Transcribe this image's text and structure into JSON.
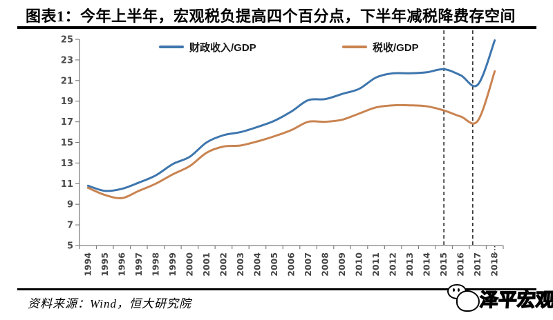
{
  "header": {
    "title": "图表1：今年上半年，宏观税负提高四个百分点，下半年减税降费存空间"
  },
  "footer": {
    "source": "资料来源：Wind，恒大研究院",
    "watermark": "泽平宏观"
  },
  "chart_data": {
    "type": "line",
    "title": "",
    "xlabel": "",
    "ylabel": "",
    "x": [
      1994,
      1995,
      1996,
      1997,
      1998,
      1999,
      2000,
      2001,
      2002,
      2003,
      2004,
      2005,
      2006,
      2007,
      2008,
      2009,
      2010,
      2011,
      2012,
      2013,
      2014,
      2015,
      2016,
      2017,
      2018
    ],
    "series": [
      {
        "name": "财政收入/GDP",
        "color": "#3E76AD",
        "values": [
          10.8,
          10.3,
          10.5,
          11.1,
          11.8,
          12.9,
          13.6,
          15.0,
          15.7,
          16.0,
          16.5,
          17.1,
          18.0,
          19.1,
          19.2,
          19.7,
          20.2,
          21.3,
          21.7,
          21.7,
          21.8,
          22.1,
          21.5,
          20.6,
          24.9
        ]
      },
      {
        "name": "税收/GDP",
        "color": "#C98350",
        "values": [
          10.6,
          9.9,
          9.6,
          10.3,
          11.0,
          11.9,
          12.7,
          14.0,
          14.6,
          14.7,
          15.1,
          15.6,
          16.2,
          17.0,
          17.0,
          17.2,
          17.8,
          18.4,
          18.6,
          18.6,
          18.5,
          18.1,
          17.5,
          17.1,
          21.9
        ]
      }
    ],
    "ylim": [
      5,
      25
    ],
    "ytick_step": 2,
    "grid": false,
    "legend_position": "top",
    "line_smoothing": true,
    "axis_color": "#808080",
    "annotations": {
      "dashed_vlines_x": [
        2015,
        2016.7
      ],
      "dashed_line_color": "#3a3a3a",
      "dotted_tick_x": 2018
    }
  }
}
